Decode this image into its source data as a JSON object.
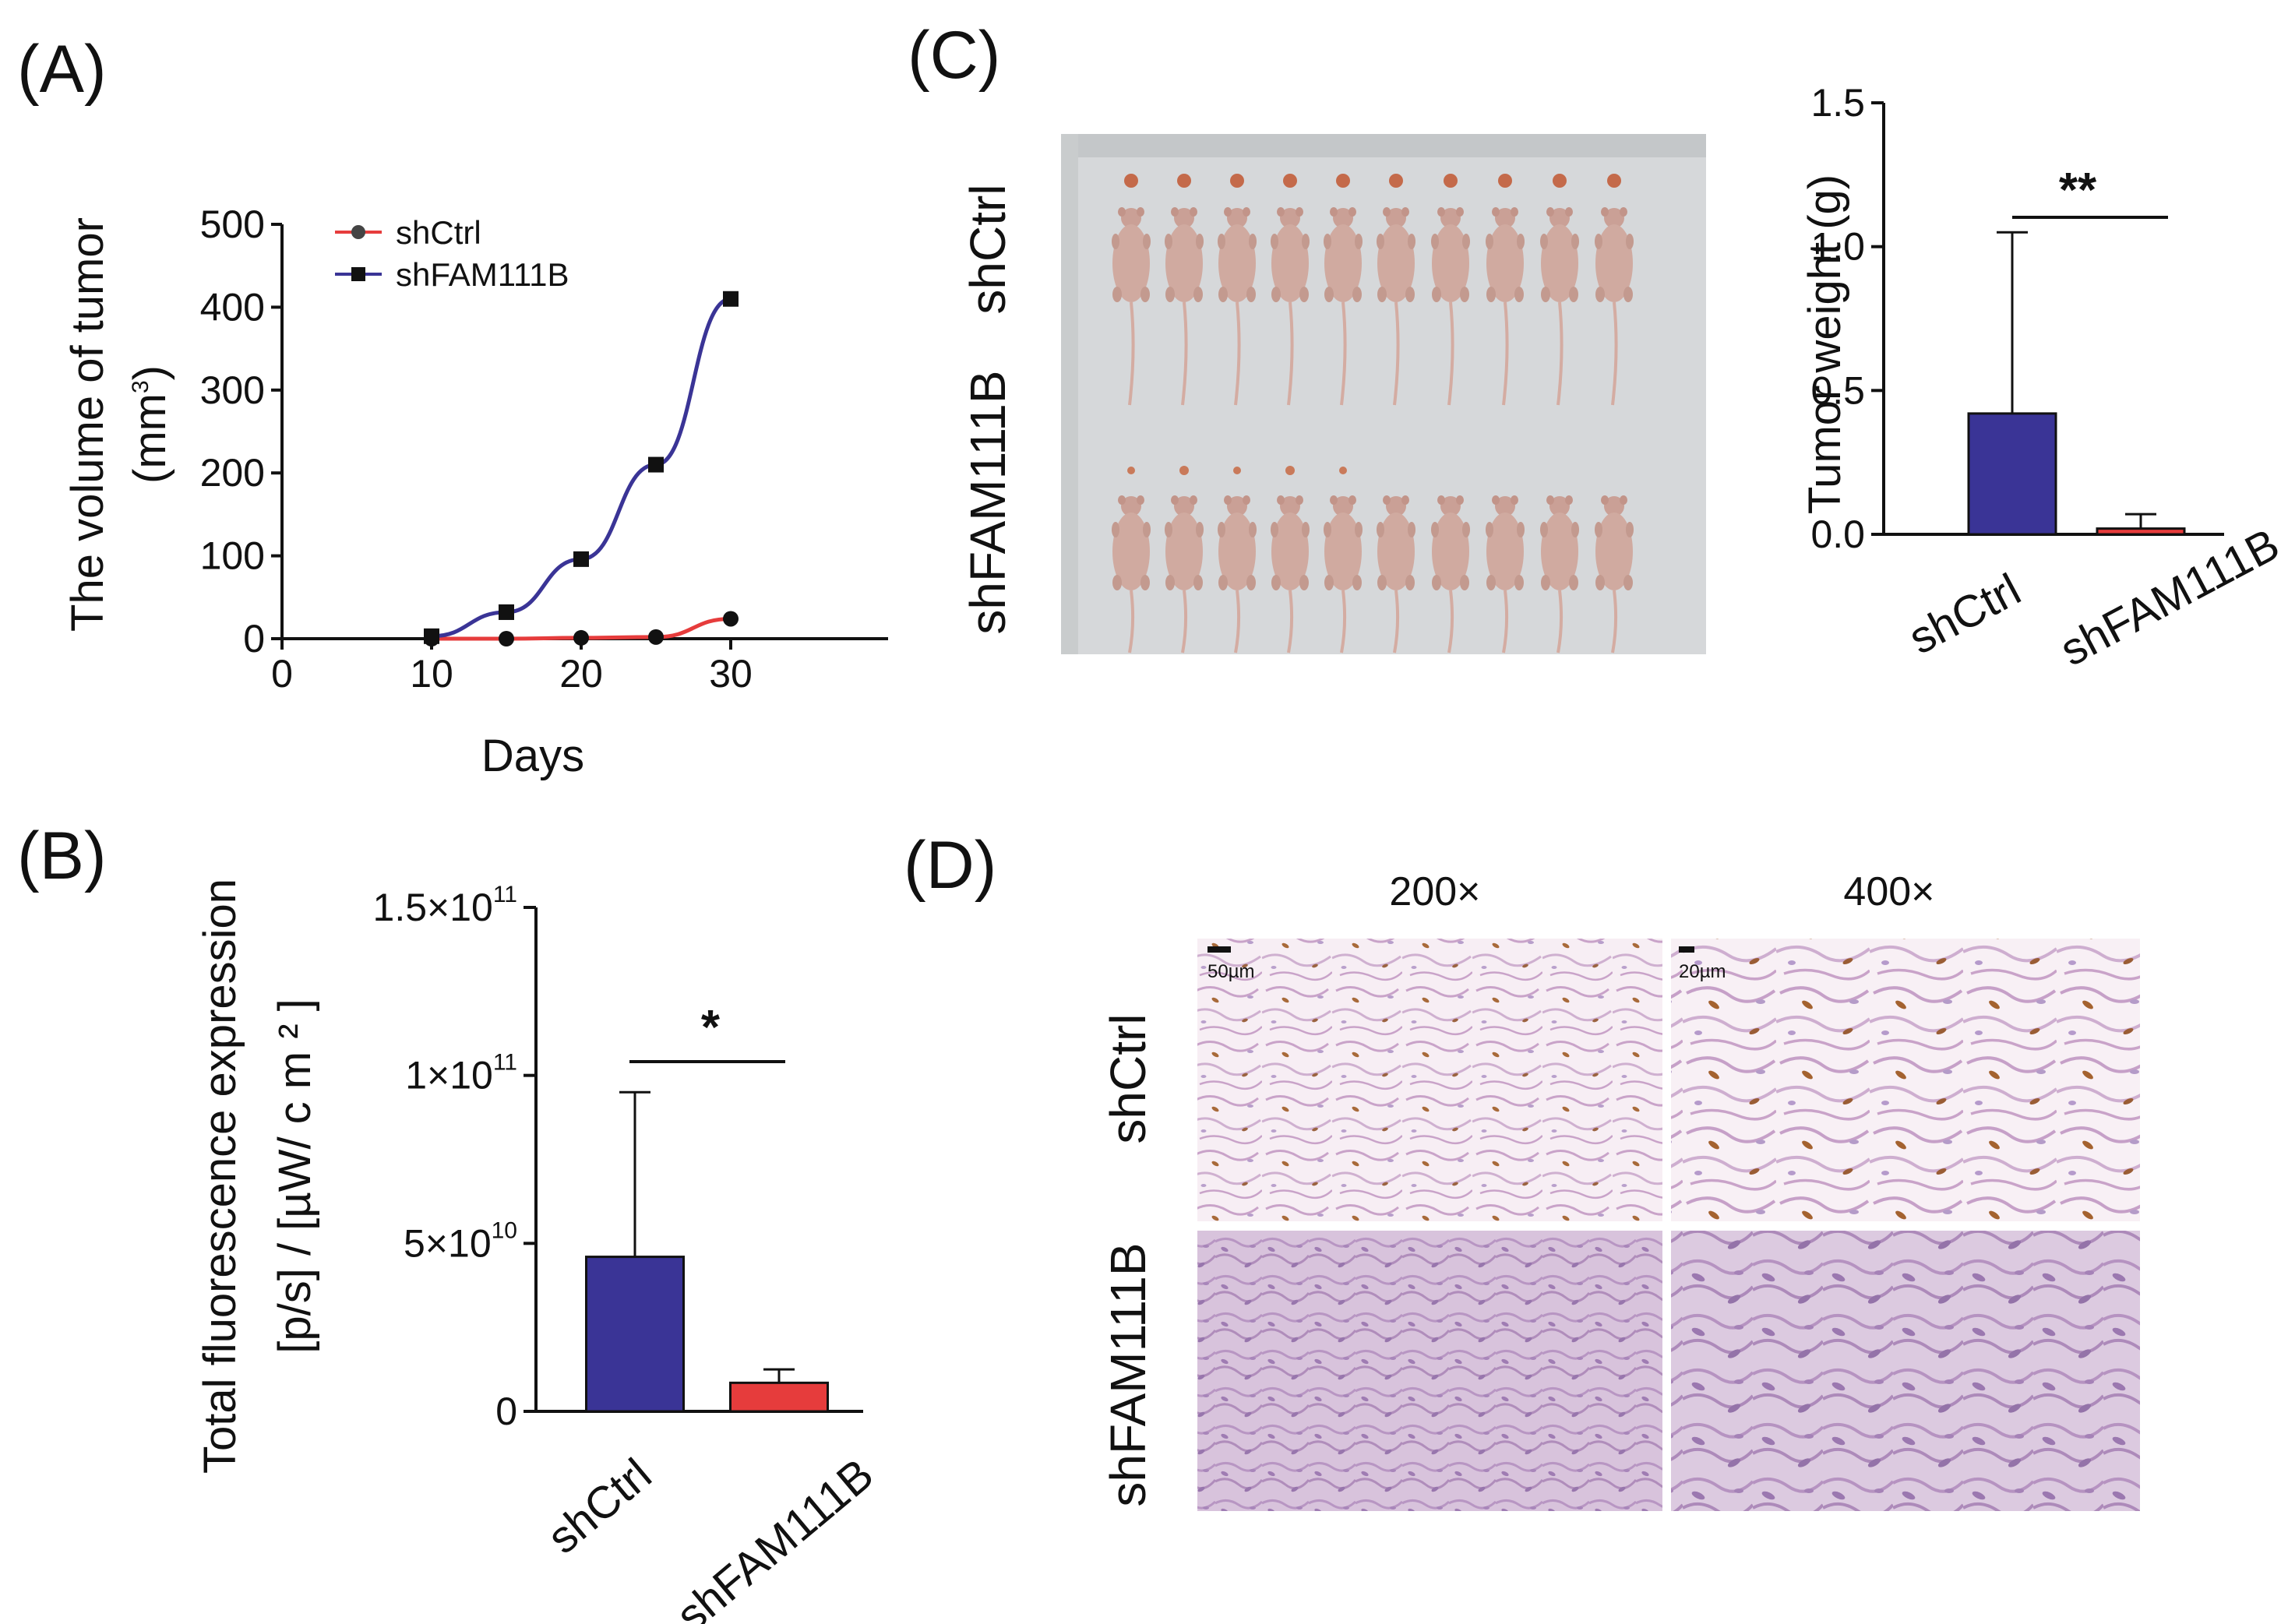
{
  "colors": {
    "blue": "#3a3496",
    "red": "#e63c3c",
    "axis": "#111111"
  },
  "panels": {
    "A": {
      "label": "(A)",
      "chart_data": {
        "type": "line",
        "x": [
          10,
          15,
          20,
          25,
          30
        ],
        "series": [
          {
            "name": "shCtrl",
            "values": [
              0,
              0,
              1,
              2,
              24
            ],
            "color": "#e63c3c",
            "marker": "circle"
          },
          {
            "name": "shFAM111B",
            "values": [
              3,
              32,
              96,
              210,
              410
            ],
            "color": "#3a3496",
            "marker": "square"
          }
        ],
        "xlabel": "Days",
        "ylabel_line1": "The volume of tumor",
        "ylabel_line2_pre": "(mm",
        "ylabel_line2_sup": "3",
        "ylabel_line2_post": ")",
        "xlim": [
          0,
          40
        ],
        "ylim": [
          0,
          500
        ],
        "xticks": [
          "0",
          "10",
          "20",
          "30"
        ],
        "yticks": [
          "0",
          "100",
          "200",
          "300",
          "400",
          "500"
        ],
        "legend": [
          "shCtrl",
          "shFAM111B"
        ],
        "legend_position": "top-left"
      }
    },
    "B": {
      "label": "(B)",
      "chart_data": {
        "type": "bar",
        "categories": [
          "shCtrl",
          "shFAM111B"
        ],
        "values": [
          46000000000.0,
          8500000000.0
        ],
        "errors": [
          49000000000.0,
          4000000000.0
        ],
        "colors": [
          "#3a3496",
          "#e63c3c"
        ],
        "ylabel_line1": "Total fluorescence expression",
        "ylabel_line2": "[p/s] / [µW/ c m ² ]",
        "ylim": [
          0,
          150000000000.0
        ],
        "ytick_labels": [
          {
            "base": "0",
            "exp": ""
          },
          {
            "base": "5×10",
            "exp": "10"
          },
          {
            "base": "1×10",
            "exp": "11"
          },
          {
            "base": "1.5×10",
            "exp": "11"
          }
        ],
        "significance": "*"
      }
    },
    "C": {
      "label": "(C)",
      "photo_rows": [
        "shCtrl",
        "shFAM111B"
      ],
      "chart_data": {
        "type": "bar",
        "categories": [
          "shCtrl",
          "shFAM111B"
        ],
        "values": [
          0.42,
          0.02
        ],
        "errors": [
          0.63,
          0.05
        ],
        "colors": [
          "#3a3496",
          "#e63c3c"
        ],
        "ylabel": "Tumor weight (g)",
        "ylim": [
          0,
          1.5
        ],
        "yticks": [
          "0.0",
          "0.5",
          "1.0",
          "1.5"
        ],
        "significance": "**"
      }
    },
    "D": {
      "label": "(D)",
      "magnifications": [
        "200×",
        "400×"
      ],
      "rows": [
        "shCtrl",
        "shFAM111B"
      ],
      "scale_bars": [
        "50µm",
        "20µm"
      ]
    }
  }
}
